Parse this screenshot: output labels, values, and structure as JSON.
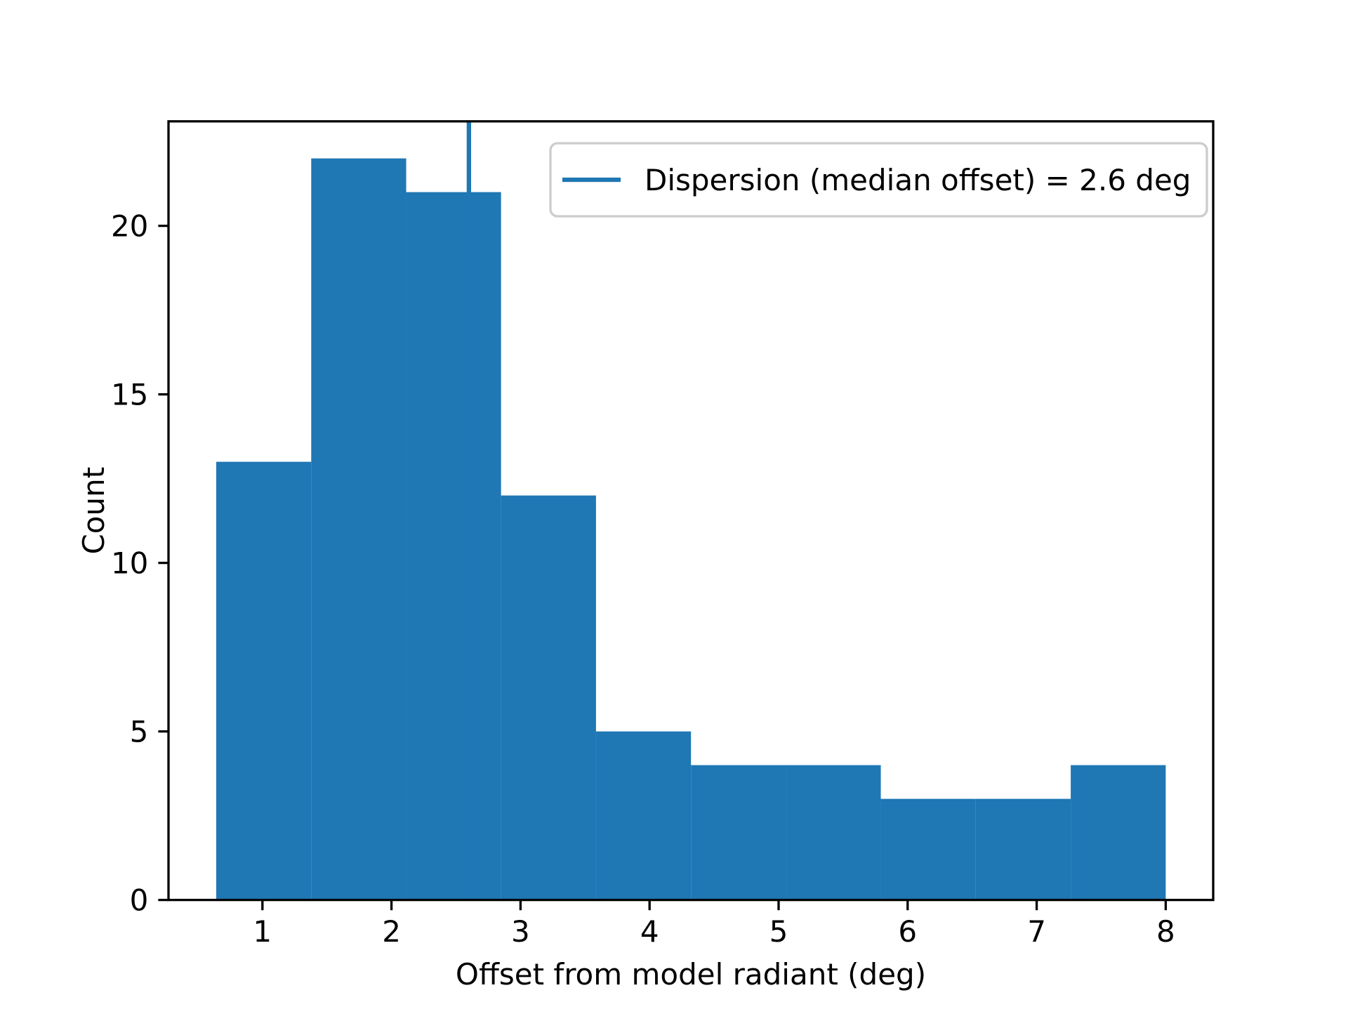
{
  "chart_data": {
    "type": "bar",
    "subtype": "histogram",
    "title": "",
    "xlabel": "Offset from model radiant (deg)",
    "ylabel": "Count",
    "bin_edges": [
      0.642,
      1.378,
      2.114,
      2.849,
      3.585,
      4.321,
      5.057,
      5.792,
      6.528,
      7.264,
      8.0
    ],
    "counts": [
      13,
      22,
      21,
      12,
      5,
      4,
      4,
      3,
      3,
      4
    ],
    "median_offset_deg": 2.6,
    "x_ticks": [
      1,
      2,
      3,
      4,
      5,
      6,
      7,
      8
    ],
    "y_ticks": [
      0,
      5,
      10,
      15,
      20
    ],
    "xlim": [
      0.272,
      8.368
    ],
    "ylim": [
      0,
      23.1
    ],
    "grid": false,
    "legend": {
      "label": "Dispersion (median offset) = 2.6 deg",
      "position": "upper right"
    },
    "colors": {
      "bar": "#1f77b4",
      "median_line": "#1f77b4",
      "axis": "#000000",
      "legend_border": "#cccccc",
      "legend_face": "#ffffff",
      "background": "#ffffff"
    }
  }
}
